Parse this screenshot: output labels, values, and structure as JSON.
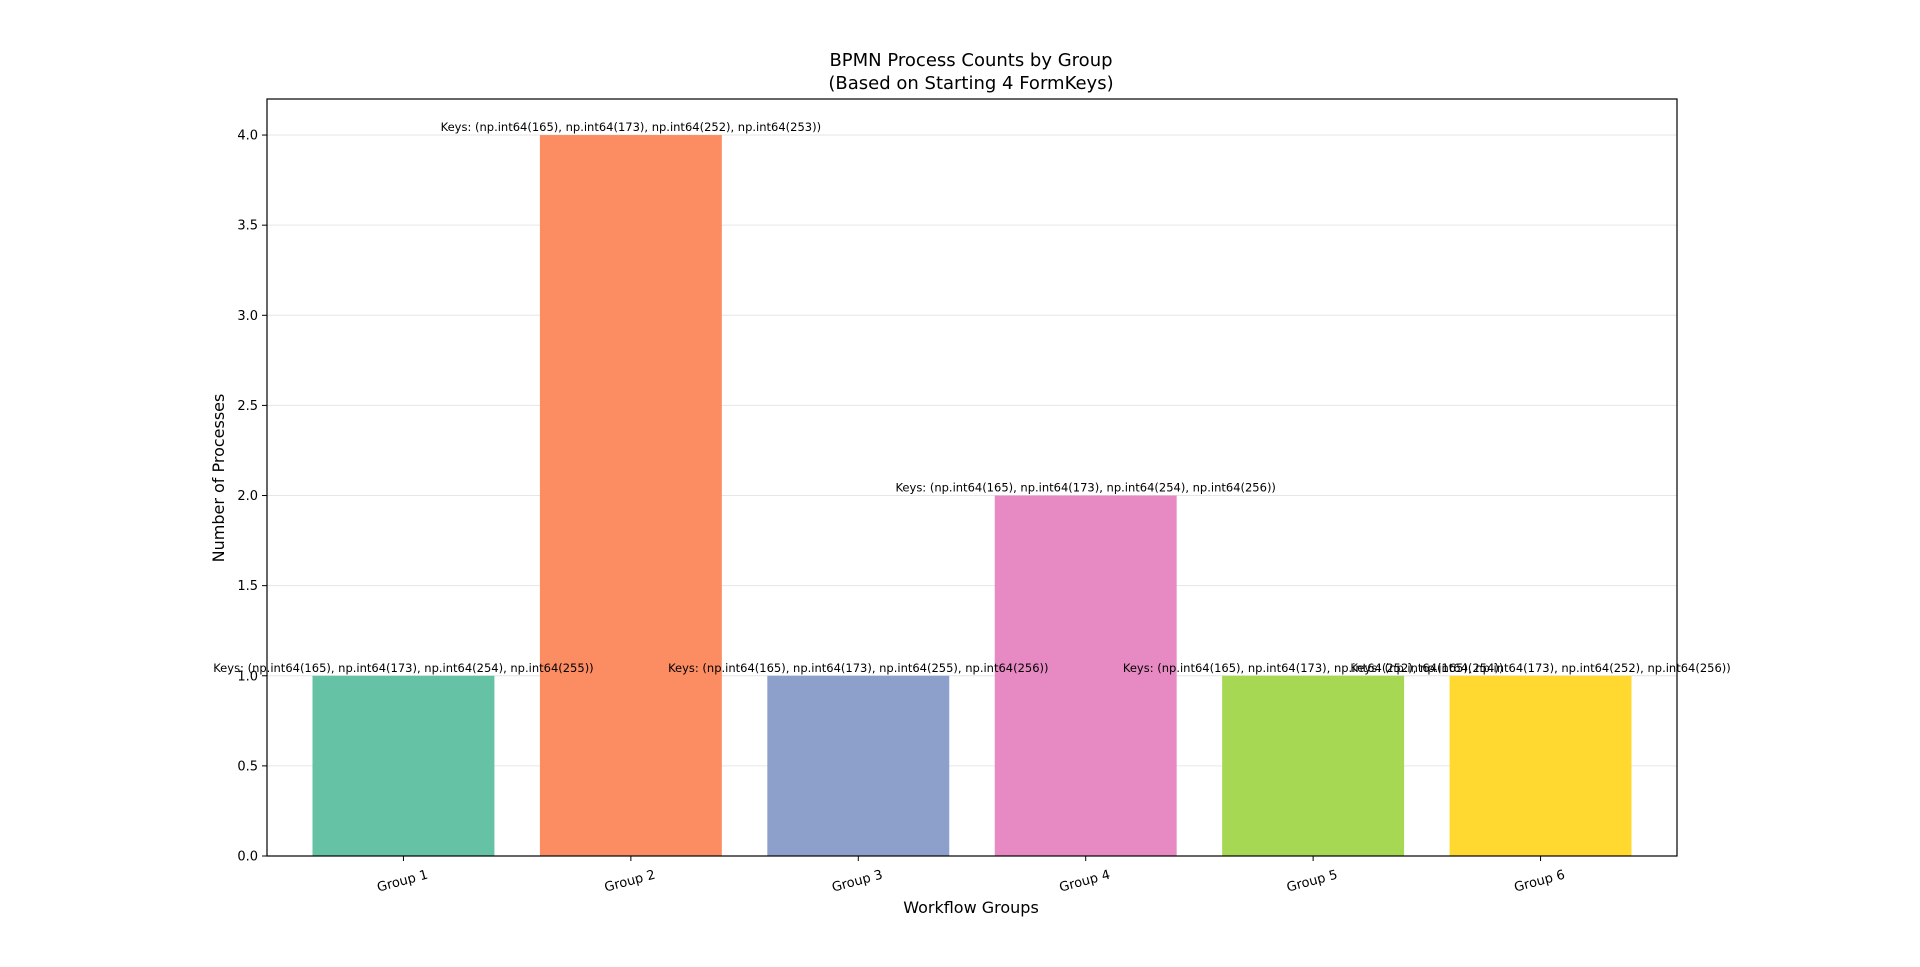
{
  "chart_data": {
    "type": "bar",
    "title": "BPMN Process Counts by Group",
    "subtitle": "(Based on Starting 4 FormKeys)",
    "xlabel": "Workflow Groups",
    "ylabel": "Number of Processes",
    "ylim": [
      0,
      4.2
    ],
    "yticks": [
      0.0,
      0.5,
      1.0,
      1.5,
      2.0,
      2.5,
      3.0,
      3.5,
      4.0
    ],
    "ytick_labels": [
      "0.0",
      "0.5",
      "1.0",
      "1.5",
      "2.0",
      "2.5",
      "3.0",
      "3.5",
      "4.0"
    ],
    "grid": "horizontal",
    "categories": [
      "Group 1",
      "Group 2",
      "Group 3",
      "Group 4",
      "Group 5",
      "Group 6"
    ],
    "values": [
      1,
      4,
      1,
      2,
      1,
      1
    ],
    "colors": [
      "#66c2a5",
      "#fc8d62",
      "#8da0cb",
      "#e78ac3",
      "#a6d854",
      "#ffd92f"
    ],
    "data_labels": [
      "Keys: (np.int64(165), np.int64(173), np.int64(254), np.int64(255))",
      "Keys: (np.int64(165), np.int64(173), np.int64(252), np.int64(253))",
      "Keys: (np.int64(165), np.int64(173), np.int64(255), np.int64(256))",
      "Keys: (np.int64(165), np.int64(173), np.int64(254), np.int64(256))",
      "Keys: (np.int64(165), np.int64(173), np.int64(252), np.int64(254))",
      "Keys: (np.int64(165), np.int64(173), np.int64(252), np.int64(256))"
    ]
  }
}
